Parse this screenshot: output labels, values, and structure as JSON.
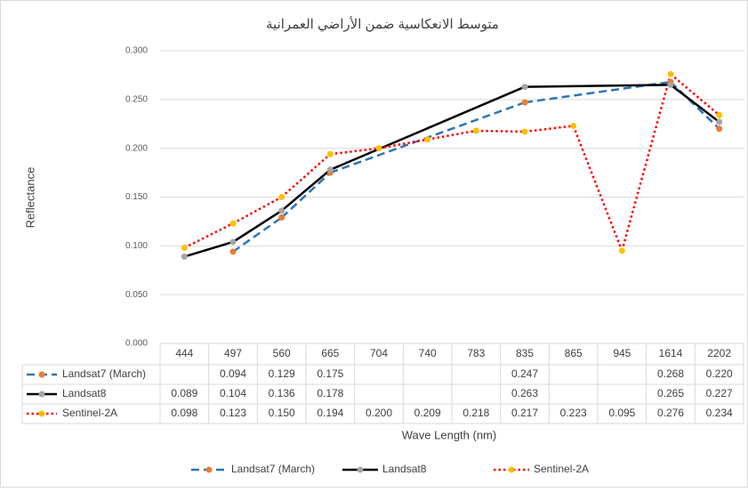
{
  "chart_data": {
    "type": "line",
    "title": "متوسط الانعكاسية ضمن الأراضي العمرانية",
    "y_label": "Reflectance",
    "x_label": "Wave Length (nm)",
    "categories": [
      "444",
      "497",
      "560",
      "665",
      "704",
      "740",
      "783",
      "835",
      "865",
      "945",
      "1614",
      "2202"
    ],
    "ylim": [
      0,
      0.3
    ],
    "yticks": [
      {
        "value": 0,
        "label": "0.000"
      },
      {
        "value": 0.05,
        "label": "0.050"
      },
      {
        "value": 0.1,
        "label": "0.100"
      },
      {
        "value": 0.15,
        "label": "0.150"
      },
      {
        "value": 0.2,
        "label": "0.200"
      },
      {
        "value": 0.25,
        "label": "0.250"
      },
      {
        "value": 0.3,
        "label": "0.300"
      }
    ],
    "grid": true,
    "legend": "bottom",
    "series": [
      {
        "name": "Landsat7 (March)",
        "color": "#2e75b6",
        "marker_color": "#ed7d31",
        "dash": "dashed",
        "values": [
          null,
          0.094,
          0.129,
          0.175,
          null,
          null,
          null,
          0.247,
          null,
          null,
          0.268,
          0.22
        ],
        "value_labels": [
          null,
          "0.094",
          "0.129",
          "0.175",
          null,
          null,
          null,
          "0.247",
          null,
          null,
          "0.268",
          "0.220"
        ]
      },
      {
        "name": "Landsat8",
        "color": "#000000",
        "marker_color": "#a5a5a5",
        "dash": "solid",
        "values": [
          0.089,
          0.104,
          0.136,
          0.178,
          null,
          null,
          null,
          0.263,
          null,
          null,
          0.265,
          0.227
        ],
        "value_labels": [
          "0.089",
          "0.104",
          "0.136",
          "0.178",
          null,
          null,
          null,
          "0.263",
          null,
          null,
          "0.265",
          "0.227"
        ]
      },
      {
        "name": "Sentinel-2A",
        "color": "#ff0000",
        "marker_color": "#ffc000",
        "dash": "dotted",
        "values": [
          0.098,
          0.123,
          0.15,
          0.194,
          0.2,
          0.209,
          0.218,
          0.217,
          0.223,
          0.095,
          0.276,
          0.234
        ],
        "value_labels": [
          "0.098",
          "0.123",
          "0.150",
          "0.194",
          "0.200",
          "0.209",
          "0.218",
          "0.217",
          "0.223",
          "0.095",
          "0.276",
          "0.234"
        ]
      }
    ]
  }
}
